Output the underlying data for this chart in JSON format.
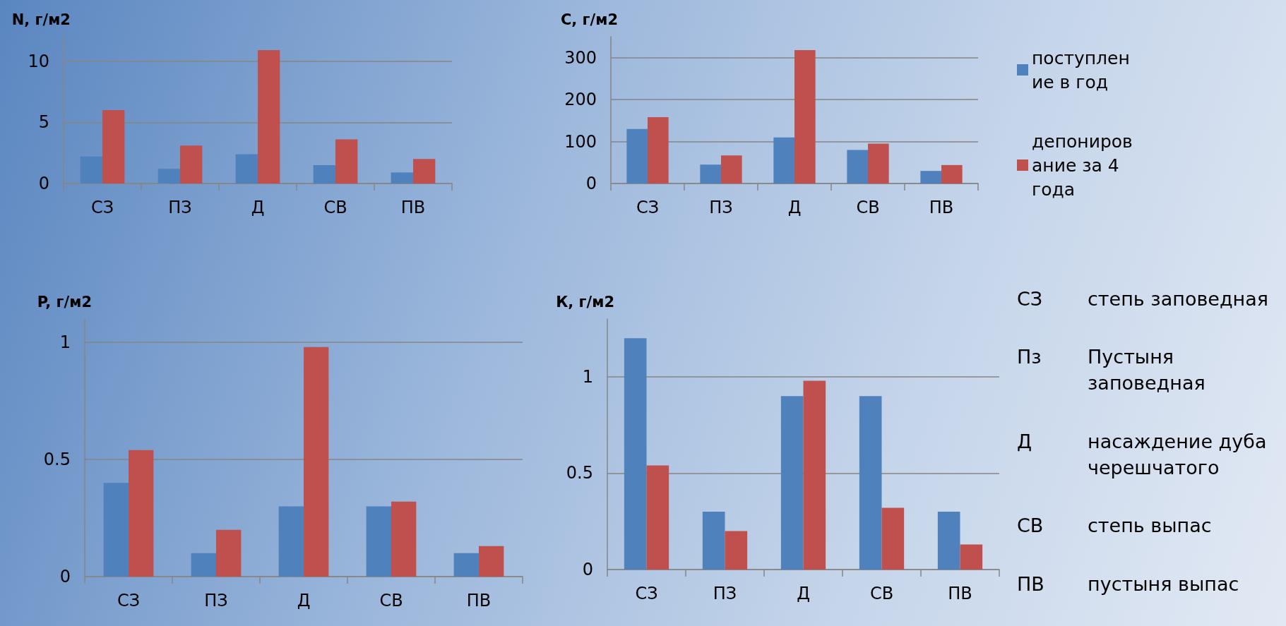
{
  "chart_data": [
    {
      "type": "bar",
      "ylabel": "N, г/м2",
      "categories": [
        "СЗ",
        "ПЗ",
        "Д",
        "СВ",
        "ПВ"
      ],
      "ylim": [
        0,
        12
      ],
      "yticks": [
        0,
        5,
        10
      ],
      "grid": "y",
      "legend": false,
      "series": [
        {
          "color": "#4f81bd",
          "values": [
            2.2,
            1.2,
            2.4,
            1.5,
            0.9
          ]
        },
        {
          "color": "#c0504d",
          "values": [
            6.0,
            3.1,
            10.9,
            3.6,
            2.0
          ]
        }
      ]
    },
    {
      "type": "bar",
      "ylabel": "C, г/м2",
      "categories": [
        "СЗ",
        "ПЗ",
        "Д",
        "СВ",
        "ПВ"
      ],
      "ylim": [
        0,
        350
      ],
      "yticks": [
        0,
        100,
        200,
        300
      ],
      "grid": "y",
      "legend": "right",
      "series": [
        {
          "name": "поступление в год",
          "color": "#4f81bd",
          "values": [
            130,
            45,
            110,
            80,
            30
          ]
        },
        {
          "name": "депонирование за 4 года",
          "color": "#c0504d",
          "values": [
            158,
            67,
            318,
            95,
            44
          ]
        }
      ]
    },
    {
      "type": "bar",
      "ylabel": "P, г/м2",
      "categories": [
        "СЗ",
        "ПЗ",
        "Д",
        "СВ",
        "ПВ"
      ],
      "ylim": [
        0,
        1.1
      ],
      "yticks": [
        0,
        0.5,
        1
      ],
      "grid": "y",
      "legend": false,
      "series": [
        {
          "color": "#4f81bd",
          "values": [
            0.4,
            0.1,
            0.3,
            0.3,
            0.1
          ]
        },
        {
          "color": "#c0504d",
          "values": [
            0.54,
            0.2,
            0.98,
            0.32,
            0.13
          ]
        }
      ]
    },
    {
      "type": "bar",
      "ylabel": "К, г/м2",
      "categories": [
        "СЗ",
        "ПЗ",
        "Д",
        "СВ",
        "ПВ"
      ],
      "ylim": [
        0,
        1.3
      ],
      "yticks": [
        0,
        0.5,
        1
      ],
      "grid": "y",
      "legend": false,
      "series": [
        {
          "color": "#4f81bd",
          "values": [
            1.2,
            0.3,
            0.9,
            0.9,
            0.3
          ]
        },
        {
          "color": "#c0504d",
          "values": [
            0.54,
            0.2,
            0.98,
            0.32,
            0.13
          ]
        }
      ]
    },
    {
      "type": "other",
      "annotations": [
        "СЗ",
        "степь заповедная",
        "Пз",
        "Пустыня заповедная",
        "Д",
        "насаждение дуба черешчатого",
        "СВ",
        "степь выпас",
        "ПВ",
        "пустыня выпас"
      ]
    }
  ]
}
